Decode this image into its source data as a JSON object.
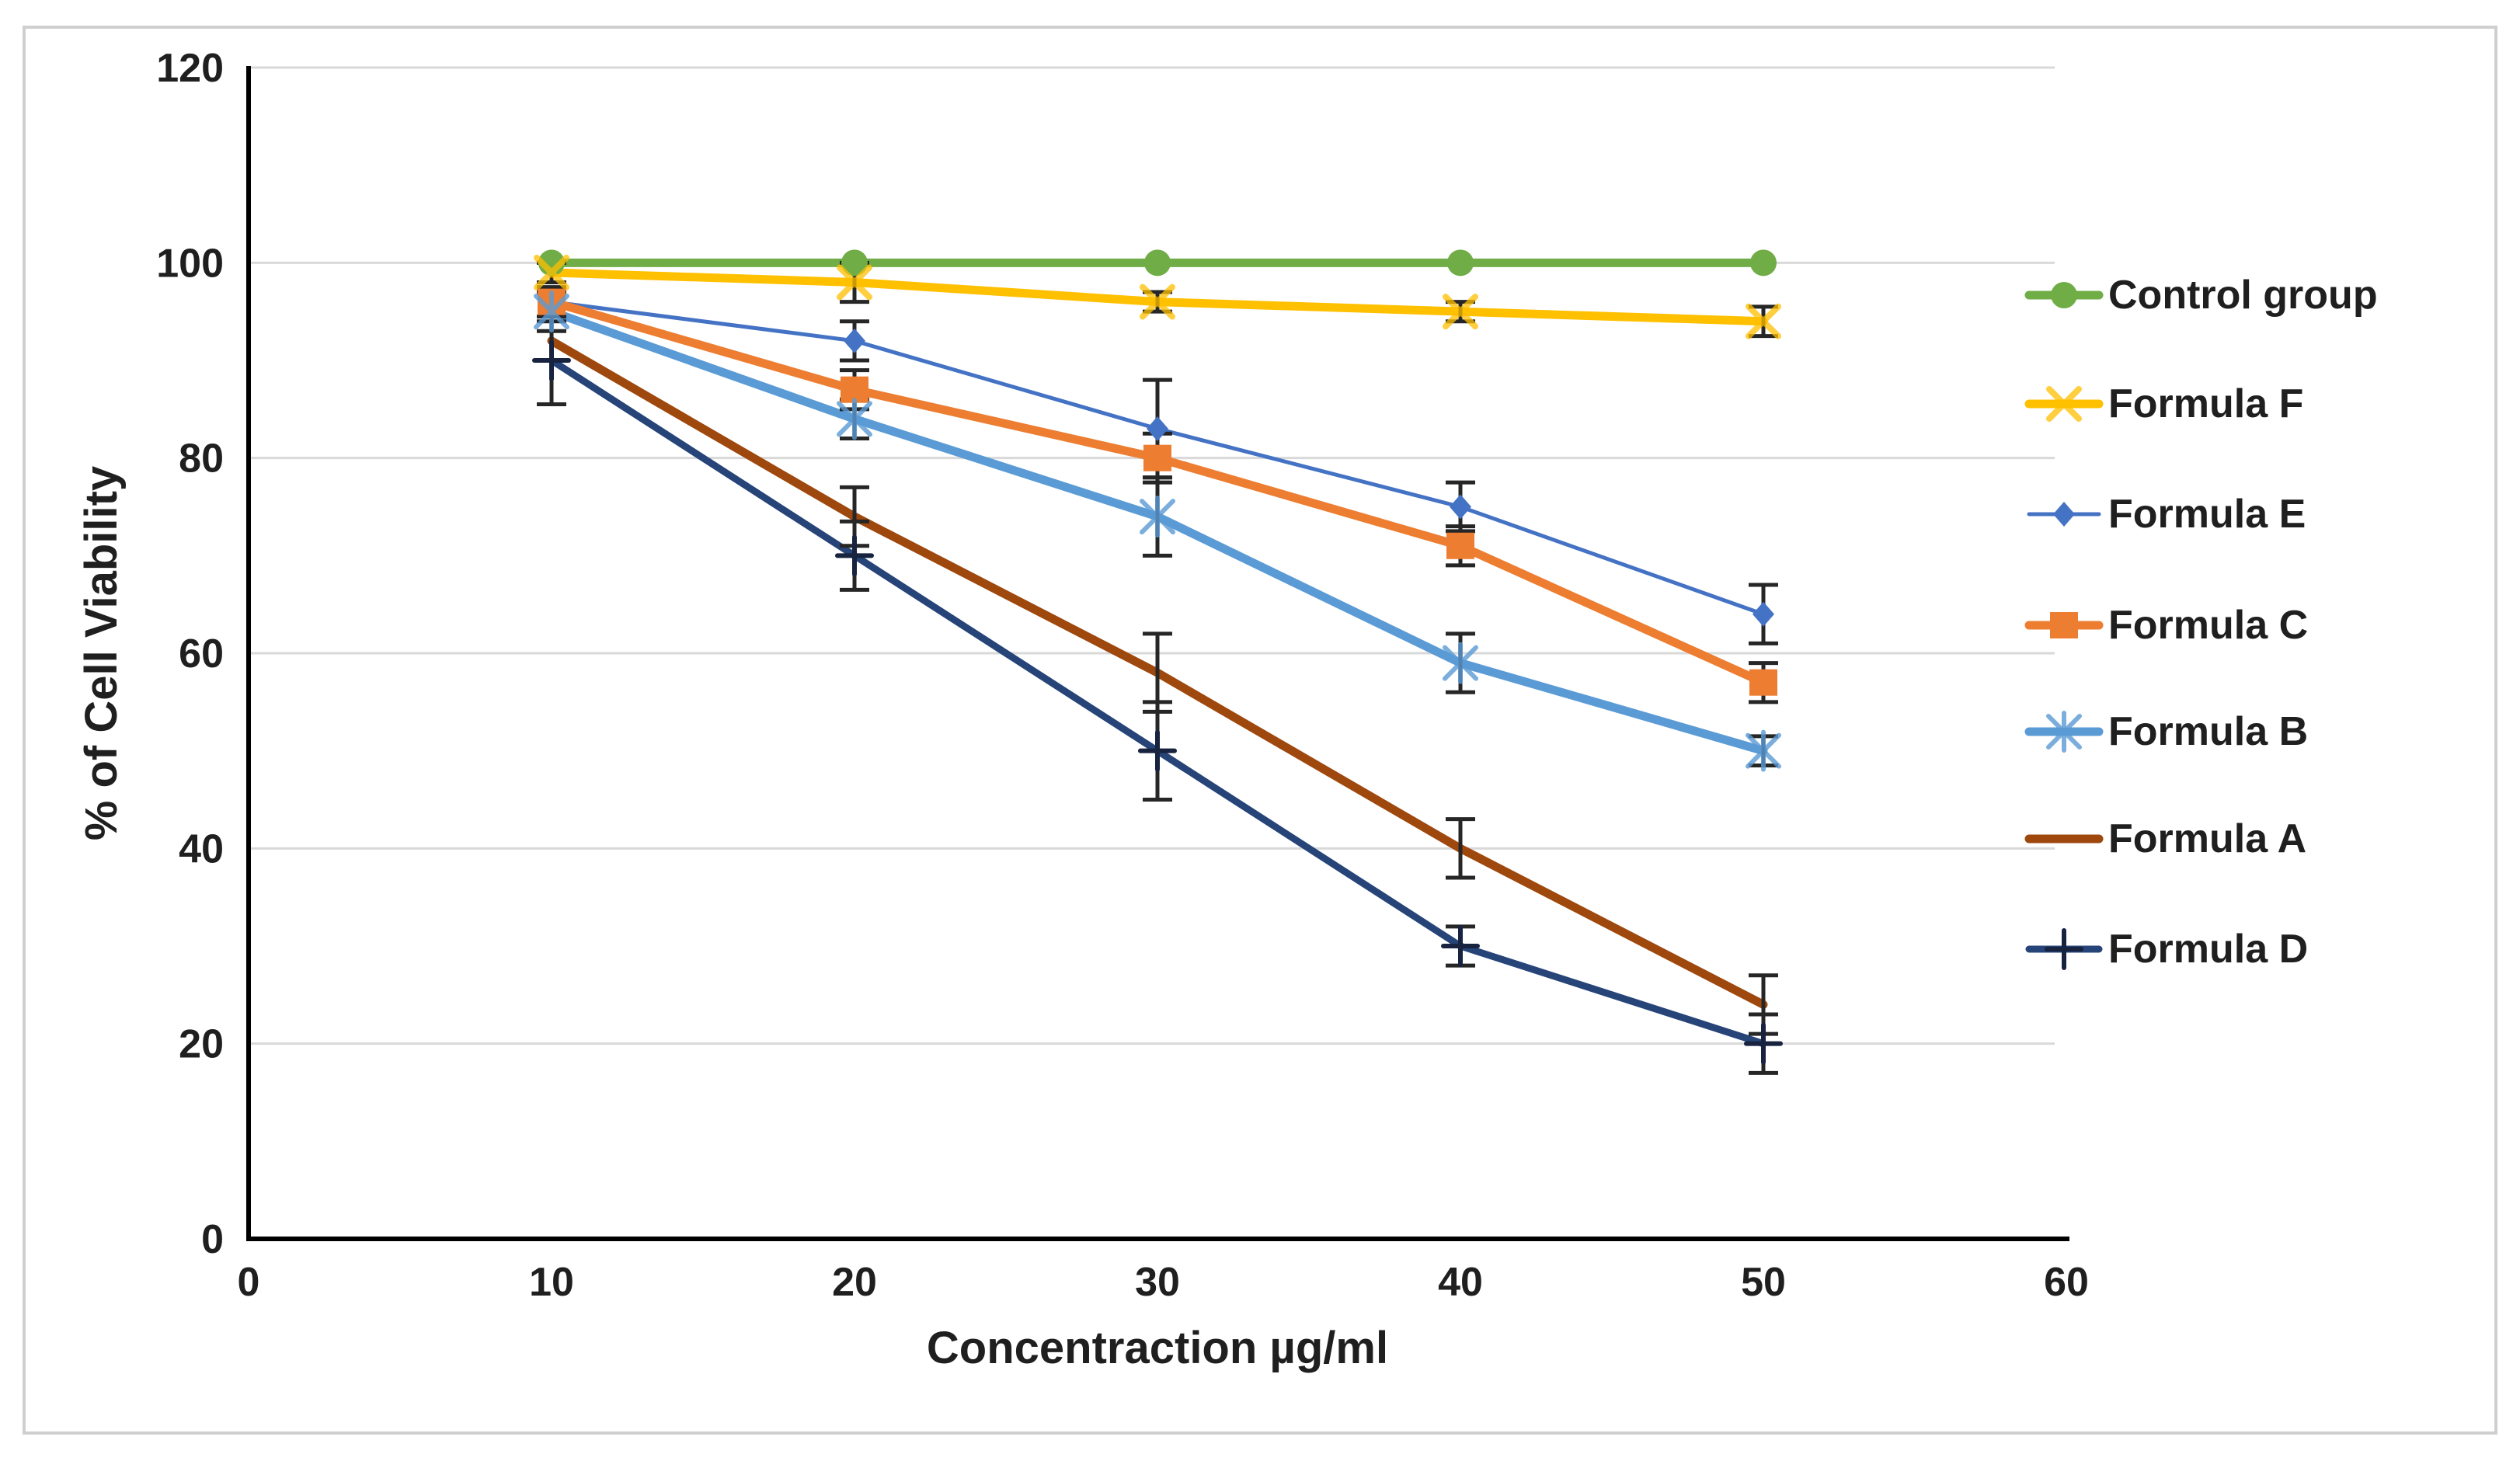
{
  "figure": {
    "kind": "excel-style line chart with error bars",
    "background_color": "#ffffff",
    "frame_border_color": "#cfcfcf",
    "axis_line_color": "#000000",
    "gridline_color": "#d9d9d9",
    "text_color": "#1f1f1f",
    "error_bar_color": "#262626"
  },
  "labels": {
    "x_axis_title": "Concentraction µg/ml",
    "y_axis_title": "% of Cell Viability"
  },
  "chart_data": {
    "type": "line",
    "title": "",
    "xlabel": "Concentraction µg/ml",
    "ylabel": "% of Cell Viability",
    "x": [
      10,
      20,
      30,
      40,
      50
    ],
    "x_ticks": [
      0,
      10,
      20,
      30,
      40,
      50,
      60
    ],
    "y_ticks": [
      0,
      20,
      40,
      60,
      80,
      100,
      120
    ],
    "xlim": [
      0,
      60
    ],
    "ylim": [
      0,
      120
    ],
    "grid": "horizontal",
    "legend_position": "right",
    "series": [
      {
        "name": "Control group",
        "color": "#70AD47",
        "marker": "circle",
        "line_width": 11,
        "values": [
          100,
          100,
          100,
          100,
          100
        ],
        "errors": [
          0,
          0,
          0,
          0,
          0
        ]
      },
      {
        "name": "Formula F",
        "color": "#FFC000",
        "marker": "x",
        "line_width": 11,
        "values": [
          99,
          98,
          96,
          95,
          94
        ],
        "errors": [
          1,
          2,
          1,
          1,
          1.5
        ]
      },
      {
        "name": "Formula E",
        "color": "#4472C4",
        "marker": "diamond",
        "line_width": 5,
        "values": [
          96,
          92,
          83,
          75,
          64
        ],
        "errors": [
          1.5,
          2,
          5,
          2.5,
          3
        ]
      },
      {
        "name": "Formula C",
        "color": "#ED7D31",
        "marker": "square",
        "line_width": 11,
        "values": [
          96,
          87,
          80,
          71,
          57
        ],
        "errors": [
          1.5,
          2,
          2.5,
          2,
          2
        ]
      },
      {
        "name": "Formula B",
        "color": "#5B9BD5",
        "marker": "asterisk",
        "line_width": 11,
        "values": [
          95,
          84,
          74,
          59,
          50
        ],
        "errors": [
          2,
          2,
          4,
          3,
          1.5
        ]
      },
      {
        "name": "Formula A",
        "color": "#9E480E",
        "marker": "none",
        "line_width": 11,
        "values": [
          92,
          74,
          58,
          40,
          24
        ],
        "errors": [
          2,
          3,
          4,
          3,
          3
        ]
      },
      {
        "name": "Formula D",
        "color": "#264478",
        "marker": "plus",
        "line_width": 9,
        "values": [
          90,
          70,
          50,
          30,
          20
        ],
        "errors": [
          4.5,
          3.5,
          5,
          2,
          3
        ]
      }
    ]
  },
  "legend": {
    "items": [
      "Control group",
      "Formula F",
      "Formula E",
      "Formula C",
      "Formula B",
      "Formula A",
      "Formula D"
    ]
  }
}
